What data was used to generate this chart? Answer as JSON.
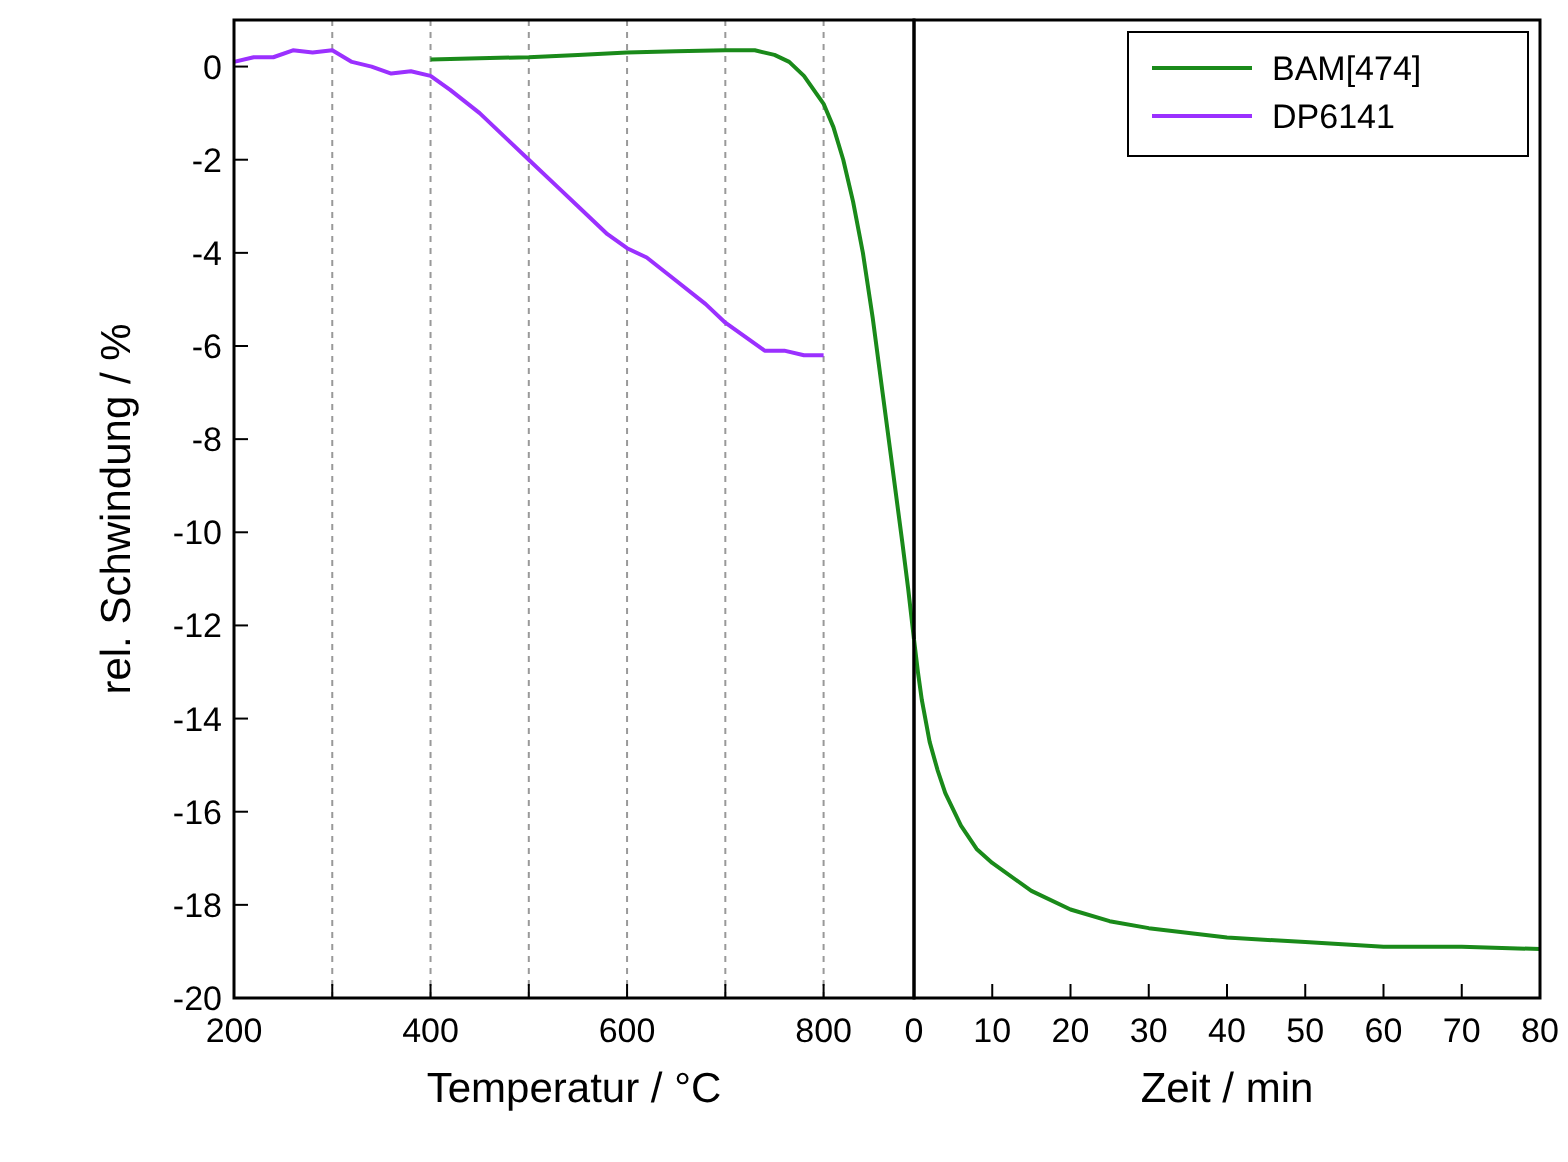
{
  "chart_data": [
    {
      "type": "line",
      "xlabel": "Temperatur / °C",
      "ylabel": "rel. Schwindung / %",
      "xlim": [
        200,
        892
      ],
      "ylim": [
        -20,
        1
      ],
      "xticks": [
        200,
        {
          "value": 300,
          "label": null
        },
        400,
        {
          "value": 500,
          "label": null
        },
        600,
        {
          "value": 700,
          "label": null
        },
        800
      ],
      "yticks": [
        -20,
        -18,
        -16,
        -14,
        -12,
        -10,
        -8,
        -6,
        -4,
        -2,
        0
      ],
      "grid": "x",
      "legend": "top right",
      "series": [
        {
          "name": "BAM[474]",
          "color": "#1a8a1a",
          "x": [
            400,
            450,
            500,
            550,
            600,
            650,
            700,
            730,
            750,
            765,
            780,
            790,
            800,
            810,
            820,
            830,
            840,
            850,
            860,
            870,
            880,
            886,
            892
          ],
          "values": [
            0.15,
            0.18,
            0.2,
            0.25,
            0.3,
            0.33,
            0.35,
            0.35,
            0.25,
            0.1,
            -0.2,
            -0.5,
            -0.8,
            -1.3,
            -2,
            -2.9,
            -4,
            -5.4,
            -7,
            -8.6,
            -10.2,
            -11.2,
            -12.3
          ]
        },
        {
          "name": "DP6141",
          "color": "#9b30ff",
          "x": [
            200,
            220,
            240,
            260,
            280,
            300,
            320,
            340,
            360,
            380,
            400,
            420,
            450,
            480,
            500,
            530,
            550,
            580,
            600,
            620,
            650,
            680,
            700,
            720,
            740,
            760,
            780,
            800
          ],
          "values": [
            0.1,
            0.2,
            0.2,
            0.35,
            0.3,
            0.35,
            0.1,
            0,
            -0.15,
            -0.1,
            -0.2,
            -0.5,
            -1,
            -1.6,
            -2,
            -2.6,
            -3,
            -3.6,
            -3.9,
            -4.1,
            -4.6,
            -5.1,
            -5.5,
            -5.8,
            -6.1,
            -6.1,
            -6.2,
            -6.2
          ]
        }
      ]
    },
    {
      "type": "line",
      "xlabel": "Zeit / min",
      "xlim": [
        0,
        80
      ],
      "ylim": [
        -20,
        1
      ],
      "xticks": [
        0,
        10,
        20,
        30,
        40,
        50,
        60,
        70,
        80
      ],
      "tick_labels": "x",
      "series": [
        {
          "color": "#1a8a1a",
          "x": [
            0,
            0.5,
            1,
            2,
            3,
            4,
            6,
            8,
            10,
            15,
            20,
            25,
            30,
            40,
            50,
            60,
            70,
            80
          ],
          "values": [
            -12.3,
            -13,
            -13.6,
            -14.5,
            -15.1,
            -15.6,
            -16.3,
            -16.8,
            -17.1,
            -17.7,
            -18.1,
            -18.35,
            -18.5,
            -18.7,
            -18.8,
            -18.9,
            -18.9,
            -18.95
          ]
        }
      ]
    }
  ]
}
